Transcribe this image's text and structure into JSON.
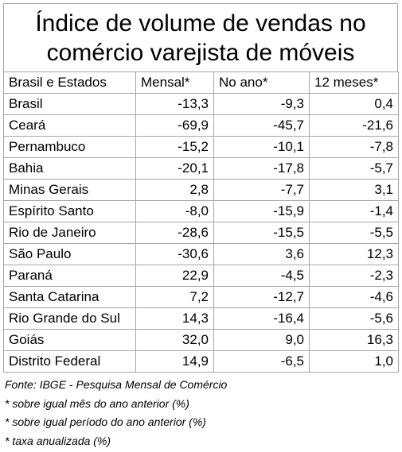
{
  "chart_data": {
    "type": "table",
    "title_lines": [
      "Índice de volume de vendas no",
      "comércio varejista de móveis"
    ],
    "columns": [
      "Brasil e Estados",
      "Mensal*",
      "No ano*",
      "12 meses*"
    ],
    "rows": [
      [
        "Brasil",
        "-13,3",
        "-9,3",
        "0,4"
      ],
      [
        "Ceará",
        "-69,9",
        "-45,7",
        "-21,6"
      ],
      [
        "Pernambuco",
        "-15,2",
        "-10,1",
        "-7,8"
      ],
      [
        "Bahia",
        "-20,1",
        "-17,8",
        "-5,7"
      ],
      [
        "Minas Gerais",
        "2,8",
        "-7,7",
        "3,1"
      ],
      [
        "Espírito Santo",
        "-8,0",
        "-15,9",
        "-1,4"
      ],
      [
        "Rio de Janeiro",
        "-28,6",
        "-15,5",
        "-5,5"
      ],
      [
        "São Paulo",
        "-30,6",
        "3,6",
        "12,3"
      ],
      [
        "Paraná",
        "22,9",
        "-4,5",
        "-2,3"
      ],
      [
        "Santa Catarina",
        "7,2",
        "-12,7",
        "-4,6"
      ],
      [
        "Rio Grande do Sul",
        "14,3",
        "-16,4",
        "-5,6"
      ],
      [
        "Goiás",
        "32,0",
        "9,0",
        "16,3"
      ],
      [
        "Distrito Federal",
        "14,9",
        "-6,5",
        "1,0"
      ]
    ],
    "footnotes": [
      "Fonte: IBGE - Pesquisa Mensal de Comércio",
      "* sobre igual mês do ano anterior (%)",
      "* sobre igual período do ano anterior (%)",
      "* taxa anualizada (%)"
    ]
  },
  "colors": {
    "border": "#a6a6a6",
    "text": "#000000",
    "background": "#ffffff"
  }
}
